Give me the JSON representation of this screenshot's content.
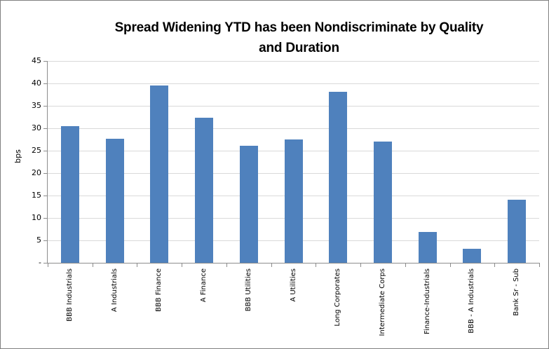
{
  "chart_data": {
    "type": "bar",
    "title": "Spread Widening YTD has been Nondiscriminate by Quality and Duration",
    "title_lines": [
      "Spread Widening YTD has been Nondiscriminate by Quality",
      "and Duration"
    ],
    "xlabel": "",
    "ylabel": "bps",
    "ylim": [
      0,
      45
    ],
    "ytick_interval": 5,
    "ytick_labels_top_to_bottom": [
      "45",
      "40",
      "35",
      "30",
      "25",
      "20",
      "15",
      "10",
      "5",
      "-"
    ],
    "grid": "horizontal",
    "legend": "none",
    "categories": [
      "BBB Industrials",
      "A Industrials",
      "BBB Finance",
      "A Finance",
      "BBB Utilities",
      "A Utilities",
      "Long Corporates",
      "Intermediate Corps",
      "Finance-Industrials",
      "BBB - A Industrials",
      "Bank Sr - Sub"
    ],
    "values": [
      30.5,
      27.7,
      39.6,
      32.3,
      26.1,
      27.5,
      38.2,
      27.0,
      6.8,
      3.1,
      14.0
    ]
  },
  "colors": {
    "bar": "#4F81BD",
    "gridline": "#D9D9D9",
    "axis": "#8C8C8C",
    "chart_border": "#808080",
    "text": "#000000",
    "background": "#FFFFFF"
  }
}
